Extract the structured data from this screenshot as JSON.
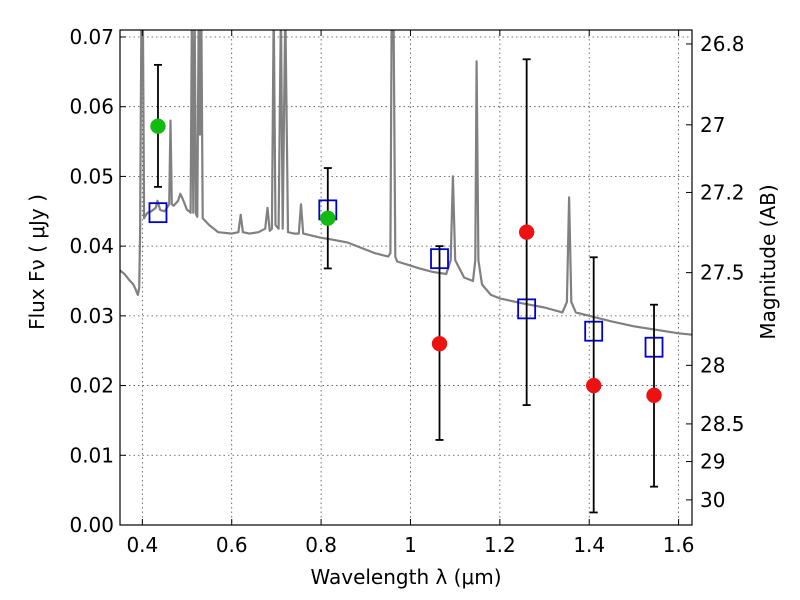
{
  "chart_data": {
    "type": "scatter",
    "xlabel": "Wavelength  λ (μm)",
    "ylabel": "Flux  Fν  ( μJy )",
    "y2label": "Magnitude (AB)",
    "xlim": [
      0.35,
      1.63
    ],
    "ylim": [
      0.0,
      0.071
    ],
    "grid": true,
    "x_ticks": [
      0.4,
      0.6,
      0.8,
      1.0,
      1.2,
      1.4,
      1.6
    ],
    "x_tick_labels": [
      "0.4",
      "0.6",
      "0.8",
      "1",
      "1.2",
      "1.4",
      "1.6"
    ],
    "y_ticks": [
      0.0,
      0.01,
      0.02,
      0.03,
      0.04,
      0.05,
      0.06,
      0.07
    ],
    "y_tick_labels": [
      "0.00",
      "0.01",
      "0.02",
      "0.03",
      "0.04",
      "0.05",
      "0.06",
      "0.07"
    ],
    "y2_ticks": [
      {
        "label": "26.8",
        "flux": 0.069
      },
      {
        "label": "27",
        "flux": 0.0574
      },
      {
        "label": "27.2",
        "flux": 0.0477
      },
      {
        "label": "27.5",
        "flux": 0.0362
      },
      {
        "label": "28",
        "flux": 0.0229
      },
      {
        "label": "28.5",
        "flux": 0.0145
      },
      {
        "label": "29",
        "flux": 0.0091
      },
      {
        "label": "30",
        "flux": 0.0036
      }
    ],
    "colors": {
      "spectrum": "#808080",
      "model_squares": "#0000cc",
      "green_points": "#11bb11",
      "red_points": "#ee1111",
      "errorbars": "#000000"
    },
    "series": [
      {
        "kind": "line",
        "points": [
          [
            0.35,
            0.0365
          ],
          [
            0.36,
            0.036
          ],
          [
            0.37,
            0.0352
          ],
          [
            0.38,
            0.0345
          ],
          [
            0.385,
            0.0338
          ],
          [
            0.39,
            0.033
          ],
          [
            0.393,
            0.034
          ],
          [
            0.395,
            0.042
          ],
          [
            0.398,
            0.075
          ],
          [
            0.401,
            0.075
          ],
          [
            0.404,
            0.044
          ],
          [
            0.408,
            0.0445
          ],
          [
            0.412,
            0.0448
          ],
          [
            0.42,
            0.045
          ],
          [
            0.43,
            0.0455
          ],
          [
            0.434,
            0.0465
          ],
          [
            0.437,
            0.0458
          ],
          [
            0.44,
            0.0452
          ],
          [
            0.45,
            0.045
          ],
          [
            0.455,
            0.0455
          ],
          [
            0.46,
            0.046
          ],
          [
            0.463,
            0.058
          ],
          [
            0.466,
            0.046
          ],
          [
            0.47,
            0.0458
          ],
          [
            0.48,
            0.0465
          ],
          [
            0.485,
            0.0475
          ],
          [
            0.49,
            0.0468
          ],
          [
            0.495,
            0.046
          ],
          [
            0.5,
            0.0452
          ],
          [
            0.505,
            0.045
          ],
          [
            0.508,
            0.0448
          ],
          [
            0.511,
            0.074
          ],
          [
            0.514,
            0.0448
          ],
          [
            0.517,
            0.074
          ],
          [
            0.52,
            0.0446
          ],
          [
            0.523,
            0.0442
          ],
          [
            0.526,
            0.074
          ],
          [
            0.529,
            0.056
          ],
          [
            0.532,
            0.074
          ],
          [
            0.535,
            0.044
          ],
          [
            0.55,
            0.043
          ],
          [
            0.57,
            0.042
          ],
          [
            0.6,
            0.0418
          ],
          [
            0.615,
            0.042
          ],
          [
            0.62,
            0.0445
          ],
          [
            0.625,
            0.042
          ],
          [
            0.64,
            0.0418
          ],
          [
            0.66,
            0.042
          ],
          [
            0.675,
            0.0425
          ],
          [
            0.68,
            0.0455
          ],
          [
            0.685,
            0.0422
          ],
          [
            0.69,
            0.0425
          ],
          [
            0.694,
            0.074
          ],
          [
            0.698,
            0.043
          ],
          [
            0.705,
            0.0425
          ],
          [
            0.71,
            0.074
          ],
          [
            0.714,
            0.0425
          ],
          [
            0.72,
            0.074
          ],
          [
            0.726,
            0.042
          ],
          [
            0.74,
            0.0418
          ],
          [
            0.75,
            0.0418
          ],
          [
            0.755,
            0.046
          ],
          [
            0.76,
            0.0418
          ],
          [
            0.78,
            0.0415
          ],
          [
            0.8,
            0.0412
          ],
          [
            0.82,
            0.041
          ],
          [
            0.86,
            0.0405
          ],
          [
            0.88,
            0.04
          ],
          [
            0.9,
            0.0395
          ],
          [
            0.92,
            0.039
          ],
          [
            0.95,
            0.0385
          ],
          [
            0.955,
            0.039
          ],
          [
            0.958,
            0.074
          ],
          [
            0.962,
            0.074
          ],
          [
            0.966,
            0.0385
          ],
          [
            0.97,
            0.0378
          ],
          [
            1.0,
            0.0372
          ],
          [
            1.02,
            0.0368
          ],
          [
            1.05,
            0.0363
          ],
          [
            1.08,
            0.036
          ],
          [
            1.09,
            0.038
          ],
          [
            1.095,
            0.05
          ],
          [
            1.1,
            0.038
          ],
          [
            1.12,
            0.0355
          ],
          [
            1.14,
            0.035
          ],
          [
            1.145,
            0.038
          ],
          [
            1.148,
            0.0665
          ],
          [
            1.152,
            0.038
          ],
          [
            1.16,
            0.0345
          ],
          [
            1.18,
            0.033
          ],
          [
            1.2,
            0.0325
          ],
          [
            1.25,
            0.0318
          ],
          [
            1.3,
            0.0312
          ],
          [
            1.34,
            0.0305
          ],
          [
            1.35,
            0.032
          ],
          [
            1.355,
            0.047
          ],
          [
            1.36,
            0.032
          ],
          [
            1.37,
            0.0305
          ],
          [
            1.4,
            0.03
          ],
          [
            1.45,
            0.0292
          ],
          [
            1.5,
            0.0285
          ],
          [
            1.55,
            0.028
          ],
          [
            1.6,
            0.0275
          ],
          [
            1.63,
            0.0273
          ]
        ]
      },
      {
        "kind": "square",
        "points": [
          [
            0.435,
            0.0448
          ],
          [
            0.815,
            0.0452
          ],
          [
            1.065,
            0.0382
          ],
          [
            1.26,
            0.031
          ],
          [
            1.41,
            0.0278
          ],
          [
            1.545,
            0.0255
          ]
        ]
      },
      {
        "kind": "dot-green",
        "points": [
          {
            "x": 0.435,
            "y": 0.0572,
            "err_low": 0.0485,
            "err_high": 0.066
          },
          {
            "x": 0.815,
            "y": 0.044,
            "err_low": 0.0368,
            "err_high": 0.0512
          }
        ]
      },
      {
        "kind": "dot-red",
        "points": [
          {
            "x": 1.065,
            "y": 0.026,
            "err_low": 0.0122,
            "err_high": 0.04
          },
          {
            "x": 1.26,
            "y": 0.042,
            "err_low": 0.0172,
            "err_high": 0.0668
          },
          {
            "x": 1.41,
            "y": 0.02,
            "err_low": 0.0018,
            "err_high": 0.0384
          },
          {
            "x": 1.545,
            "y": 0.0186,
            "err_low": 0.0055,
            "err_high": 0.0316
          }
        ]
      }
    ]
  }
}
